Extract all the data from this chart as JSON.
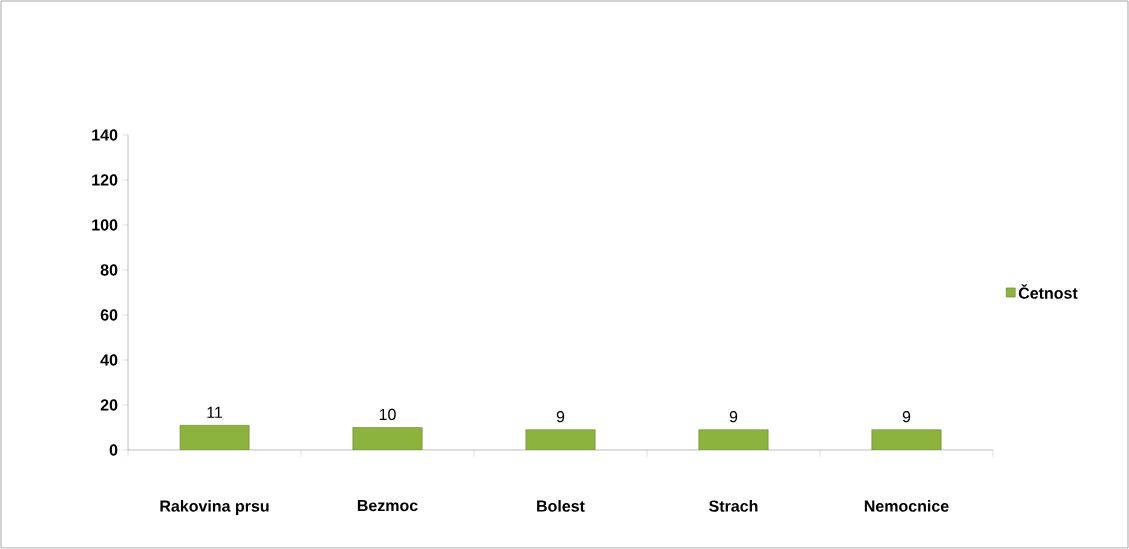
{
  "chart_data": {
    "type": "bar",
    "categories": [
      "Rakovina prsu",
      "Bezmoc",
      "Bolest",
      "Strach",
      "Nemocnice"
    ],
    "series": [
      {
        "name": "Četnost",
        "color": "#8cb33b",
        "values": [
          11,
          10,
          9,
          9,
          9
        ]
      }
    ],
    "ylim": [
      0,
      140
    ],
    "yticks": [
      0,
      20,
      40,
      60,
      80,
      100,
      120,
      140
    ],
    "data_labels": true,
    "legend": "right"
  }
}
